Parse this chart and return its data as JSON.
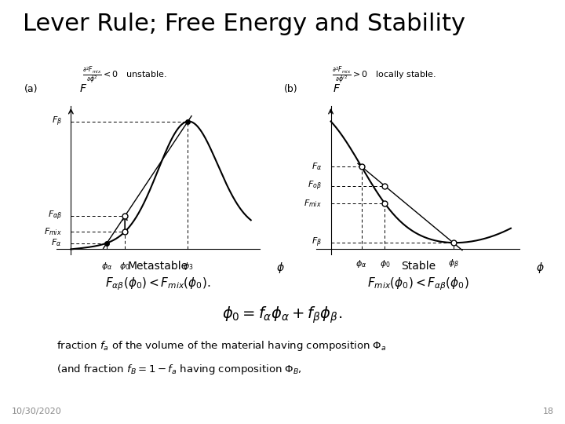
{
  "title": "Lever Rule; Free Energy and Stability",
  "title_fontsize": 22,
  "background_color": "#ffffff",
  "slide_date": "10/30/2020",
  "slide_number": "18",
  "text_color": "#000000"
}
